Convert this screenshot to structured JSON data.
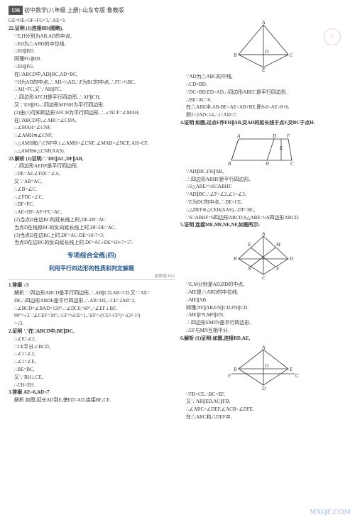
{
  "header": {
    "pageNum": "136",
    "title": "初中数学(八年级 上册)·山东专版·鲁教版"
  },
  "col1": {
    "lines": [
      {
        "t": "GE=OE+OF+FG=3,∴AE=3."
      },
      {
        "t": "22.证明 (1)连接BD(图略),",
        "bold": true
      },
      {
        "t": "∵E,H分别为AB,AD的中点,",
        "cls": "indent1"
      },
      {
        "t": "∴EH为△ABD的中位线,",
        "cls": "indent1"
      },
      {
        "t": "∴EH∥BD.",
        "cls": "indent1"
      },
      {
        "t": "同理FG∥BD.",
        "cls": "indent1"
      },
      {
        "t": "∴EH∥FG.",
        "cls": "indent1"
      },
      {
        "t": "在□ABCD中,AD∥BC,AD=BC,",
        "cls": "indent1"
      },
      {
        "t": "∵H为AD的中点,∴AH=½AD,∴F为BC的中点,∴FC=½BC,",
        "cls": "indent1"
      },
      {
        "t": "∴AH=FC,又∵AH∥FC,",
        "cls": "indent1"
      },
      {
        "t": "∴四边形AFCH是平行四边形,∴AF∥CH,",
        "cls": "indent1"
      },
      {
        "t": "又∵EH∥FG,∴四边形MFNH为平行四边形.",
        "cls": "indent1"
      },
      {
        "t": "(2)由(1)可知四边形AFCH为平行四边形,∴∠NCF=∠MAH,",
        "cls": "indent1"
      },
      {
        "t": "在□ABCD中,∠ABC=∠CDA,",
        "cls": "indent1"
      },
      {
        "t": "∴∠MAH=∠CNF,",
        "cls": "indent1"
      },
      {
        "t": "∴∠AMH≌∠CNF,",
        "cls": "indent1"
      },
      {
        "t": "∴△AMH和△CNF中,{∠AMH=∠CNF, ∠MAH=∠NCF, AH=CF,",
        "cls": "indent1"
      },
      {
        "t": "∴△AMH≌△CNF(AAS).",
        "cls": "indent1"
      },
      {
        "t": "23.解析 (1)证明:∵DE∥AC,DF∥AB,",
        "bold": true
      },
      {
        "t": "∴四边形AEDF是平行四边形,",
        "cls": "indent1"
      },
      {
        "t": "∴DE=AF,∠FDC=∠A,",
        "cls": "indent1"
      },
      {
        "t": "又∵AB=AC,",
        "cls": "indent1"
      },
      {
        "t": "∴∠B=∠C.",
        "cls": "indent1"
      },
      {
        "t": "∴∠FDC=∠C,",
        "cls": "indent1"
      },
      {
        "t": "∴DF=FC.",
        "cls": "indent1"
      },
      {
        "t": "∴AE+DF=AF+FC=AC.",
        "cls": "indent1"
      },
      {
        "t": "(2)当点D在边BC的延长线上时,DE-DF=AC.",
        "cls": "indent1"
      },
      {
        "t": "当点D在线段BC的反向延长线上时,DF-DE=AC.",
        "cls": "indent1"
      },
      {
        "t": "(3)当点D在边BC上时,DF=AC-DE=10-7=3.",
        "cls": "indent1"
      },
      {
        "t": "当点D在边BC的反向延长线上时,DF=AC+DE=10+7=17.",
        "cls": "indent1"
      }
    ],
    "sectionMain": "专项综合全练(四)",
    "sectionSub": "利用平行四边形的性质和判定解题",
    "tagBar": "全练版 P83",
    "lines2": [
      {
        "t": "1.答案 √3",
        "bold": true
      },
      {
        "t": "解析 ∵四边形ABCD是平行四边形,∴AB∥CD,AB=CD,又∵AE=",
        "cls": "indent1"
      },
      {
        "t": "DE,∴四边形ABDE是平行四边形,∴AB=DE,∴CE=2AB=2,",
        "cls": "indent1"
      },
      {
        "t": "∴∠BCD=∠BAD=120°,∴∠DCE=60°,∴∠EF⊥BF,",
        "cls": "indent1"
      },
      {
        "t": "90°=√3.∵∠CEF=30°,∴CF=½CE=1,∴EF=√(CE²-CF²)=√(2²-1²)",
        "cls": "indent1"
      },
      {
        "t": "=√3.",
        "cls": "indent1"
      },
      {
        "t": "2.证明 ∵在□ABCD中,BE∥DC,",
        "bold": true
      },
      {
        "t": "∴∠E=∠2,",
        "cls": "indent1"
      },
      {
        "t": "∵CE平分∠BCD,",
        "cls": "indent1"
      },
      {
        "t": "∴∠1=∠2,",
        "cls": "indent1"
      },
      {
        "t": "∴∠1=∠E,",
        "cls": "indent1"
      },
      {
        "t": "∴BE=BC,",
        "cls": "indent1"
      },
      {
        "t": "又∵BH⊥CE,",
        "cls": "indent1"
      },
      {
        "t": "∴CH=EH.",
        "cls": "indent1"
      },
      {
        "t": "3.答案 AE=6,AD<7",
        "bold": true
      },
      {
        "t": "解析 如图,延长AD到E,使ED=AD,连接BE,CE.",
        "cls": "indent1"
      }
    ]
  },
  "col2": {
    "diagram1": {
      "type": "triangle",
      "labels": {
        "A": "A",
        "B": "B",
        "C": "C",
        "D": "D",
        "E": "E"
      }
    },
    "lines1": [
      {
        "t": "∵AD为△ABC的中线,",
        "cls": "indent1"
      },
      {
        "t": "∴CD=BD.",
        "cls": "indent1"
      },
      {
        "t": "∵DC=BD,ED=AD,∴四边形ABEC是平行四边形.",
        "cls": "indent1"
      },
      {
        "t": "∴BE=AC=6.",
        "cls": "indent1"
      },
      {
        "t": "在△ABE中,AB-BE<AE<AB+BE,即8-6<AE<8+6,",
        "cls": "indent1"
      },
      {
        "t": "即2<2AD<14,∴1<AD<7.",
        "cls": "indent1"
      },
      {
        "t": "4.证明 如图,过点E作FH∥AB,交AD的延长线于点F,交BC于点H.",
        "bold": true
      }
    ],
    "diagram2": {
      "type": "parallelogram",
      "labels": {
        "A": "A",
        "B": "B",
        "C": "C",
        "D": "D",
        "E": "E",
        "F": "F",
        "H": "H"
      }
    },
    "lines2": [
      {
        "t": "∵AD∥BC,FH∥AB,",
        "cls": "indent1"
      },
      {
        "t": "∴四边形ABHF是平行四边形,",
        "cls": "indent1"
      },
      {
        "t": "∴S△ABE=½S□ABHF.",
        "cls": "indent1"
      },
      {
        "t": "∵AD∥BC,∴∠F=∠2,∠1=∠3,",
        "cls": "indent1"
      },
      {
        "t": "∵E为DC的中点,∴DE=CE,",
        "cls": "indent1"
      },
      {
        "t": "∴△DEF≌△CEH(AAS),∴DF=HC,",
        "cls": "indent1"
      },
      {
        "t": "∵S□ABHF=S四边形ABCD,S△ABE=½S四边形ABCD.",
        "cls": "indent1"
      },
      {
        "t": "5.证明 连接ME,MF,NE,NF,如图所示:",
        "bold": true
      }
    ],
    "diagram3": {
      "type": "quadrilateral",
      "labels": {
        "A": "A",
        "B": "B",
        "C": "C",
        "D": "D",
        "E": "E",
        "F": "F",
        "M": "M",
        "N": "N"
      }
    },
    "lines3": [
      {
        "t": "∵E,M分别是AD,BD的中点,",
        "cls": "indent1"
      },
      {
        "t": "∴ME是△ABD的中位线.",
        "cls": "indent1"
      },
      {
        "t": "∴ME∥AB.",
        "cls": "indent1"
      },
      {
        "t": "同理,NF∥AB,EN∥CD,FN∥CD.",
        "cls": "indent1"
      },
      {
        "t": "∴ME∥FN,MF∥EN,",
        "cls": "indent1"
      },
      {
        "t": "∴四边形EMFN是平行四边形,",
        "cls": "indent1"
      },
      {
        "t": "∴EF与MN互相平分.",
        "cls": "indent1"
      },
      {
        "t": "6.解析 (1)证明:如图,连接BD,AE,",
        "bold": true
      }
    ],
    "diagram4": {
      "type": "quadrilateral2",
      "labels": {
        "A": "A",
        "B": "B",
        "C": "C",
        "D": "D",
        "E": "E",
        "F": "F",
        "O": "O"
      }
    },
    "lines4": [
      {
        "t": "∵FB=CE,∴BC=EF,",
        "cls": "indent1"
      },
      {
        "t": "又∵AB∥ED,AC∥FD,",
        "cls": "indent1"
      },
      {
        "t": "∴∠ABC=∠DEF,∠ACB=∠DFE.",
        "cls": "indent1"
      },
      {
        "t": "在△ABC和△DEF中,",
        "cls": "indent1"
      }
    ]
  },
  "colors": {
    "text": "#333333",
    "sectionTitle": "#2a5a8a",
    "pageNumBg": "#555555",
    "diagramStroke": "#333333",
    "background": "#ffffff"
  },
  "watermark": "MXQE.COM"
}
